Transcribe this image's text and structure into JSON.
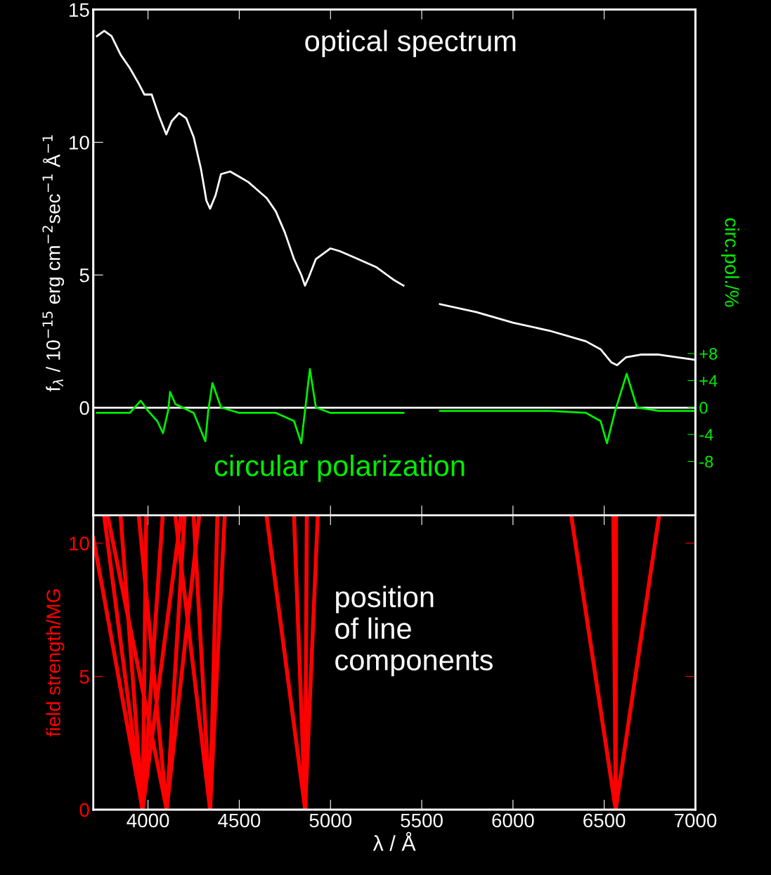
{
  "chart_data": [
    {
      "type": "line",
      "ylabel": "f$_{λ}$ / 10$^{−15}$ erg cm$^{−2}$sec$^{−1}$ Å$^{−1}$",
      "y2label": "circ.pol./%",
      "xlim": [
        3700,
        7000
      ],
      "ylim": [
        -4.06,
        15
      ],
      "yticks": [
        0,
        5,
        10,
        15
      ],
      "y2lim": [
        -16,
        59
      ],
      "y2ticks": [
        {
          "value": 8,
          "label": "+8"
        },
        {
          "value": 4,
          "label": "+4"
        },
        0,
        {
          "value": -4,
          "label": "-4"
        },
        {
          "value": -8,
          "label": "-8"
        }
      ],
      "tick_labels": "y",
      "grid": false,
      "legend": false,
      "ref_lines": [
        {
          "axis": "y",
          "value": 0,
          "color": "#ffffff"
        }
      ],
      "annotations": [
        "optical spectrum",
        "circular polarization"
      ],
      "series": [
        {
          "color": "#ffffff",
          "x": [
            3720,
            3760,
            3800,
            3850,
            3900,
            3950,
            3980,
            4020,
            4060,
            4100,
            4130,
            4170,
            4210,
            4250,
            4290,
            4320,
            4340,
            4370,
            4400,
            4450,
            4500,
            4550,
            4600,
            4650,
            4700,
            4750,
            4800,
            4840,
            4860,
            4880,
            4920,
            5000,
            5050,
            5150,
            5250,
            5350,
            5400,
            5410,
            5600,
            5800,
            6000,
            6200,
            6400,
            6480,
            6540,
            6570,
            6620,
            6700,
            6800,
            6900,
            7000
          ],
          "values": [
            14.0,
            14.2,
            14.0,
            13.3,
            12.8,
            12.2,
            11.8,
            11.8,
            11.0,
            10.3,
            10.8,
            11.1,
            10.9,
            10.2,
            9.0,
            7.8,
            7.5,
            8.0,
            8.8,
            8.9,
            8.7,
            8.5,
            8.2,
            7.9,
            7.4,
            6.6,
            5.6,
            5.0,
            4.6,
            4.9,
            5.6,
            6.0,
            5.9,
            5.6,
            5.3,
            4.8,
            4.6,
            null,
            3.9,
            3.6,
            3.2,
            2.9,
            2.5,
            2.2,
            1.7,
            1.6,
            1.9,
            2.0,
            2.0,
            1.9,
            1.8
          ]
        },
        {
          "color": "#00ee00",
          "axis": "y2",
          "x": [
            3720,
            3900,
            3960,
            4000,
            4050,
            4082,
            4110,
            4121,
            4150,
            4250,
            4314,
            4330,
            4353,
            4400,
            4500,
            4700,
            4800,
            4840,
            4860,
            4887,
            4920,
            5000,
            5200,
            5400,
            5410,
            5600,
            5800,
            6000,
            6200,
            6400,
            6480,
            6515,
            6560,
            6623,
            6680,
            6800,
            7000
          ],
          "values": [
            -0.8,
            -0.8,
            1.0,
            -0.5,
            -2.0,
            -3.8,
            -0.5,
            2.3,
            0.5,
            -0.8,
            -5.0,
            -0.5,
            3.6,
            0.0,
            -0.8,
            -0.8,
            -2.0,
            -5.3,
            -0.5,
            5.7,
            0.0,
            -0.8,
            -0.8,
            -0.8,
            null,
            -0.5,
            -0.5,
            -0.5,
            -0.5,
            -0.8,
            -2.0,
            -5.3,
            -0.5,
            5.0,
            0.0,
            -0.5,
            -0.5
          ]
        }
      ]
    },
    {
      "type": "line",
      "xlabel": "λ / Å",
      "ylabel": "field strength/MG",
      "xlim": [
        3700,
        7000
      ],
      "xticks": [
        4000,
        4500,
        5000,
        5500,
        6000,
        6500,
        7000
      ],
      "ylim": [
        0,
        11.05
      ],
      "yticks": [
        0,
        5,
        10
      ],
      "grid": false,
      "legend": false,
      "annotations": [
        "position\nof line\ncomponents"
      ],
      "series": [
        {
          "color": "#ff0000",
          "x": [
            3700,
            3970,
            4180
          ],
          "values": [
            10.2,
            0,
            11
          ]
        },
        {
          "color": "#ff0000",
          "x": [
            3760,
            3970,
            4080
          ],
          "values": [
            11,
            0,
            11
          ]
        },
        {
          "color": "#ff0000",
          "x": [
            3850,
            3970,
            3990
          ],
          "values": [
            11,
            0,
            11
          ]
        },
        {
          "color": "#ff0000",
          "x": [
            3780,
            4102,
            4280
          ],
          "values": [
            11,
            0,
            11
          ]
        },
        {
          "color": "#ff0000",
          "x": [
            3950,
            4102,
            4200
          ],
          "values": [
            11,
            0,
            11
          ]
        },
        {
          "color": "#ff0000",
          "x": [
            4150,
            4340,
            4420
          ],
          "values": [
            11,
            0,
            11
          ]
        },
        {
          "color": "#ff0000",
          "x": [
            4250,
            4340,
            4380
          ],
          "values": [
            11,
            0,
            11
          ]
        },
        {
          "color": "#ff0000",
          "x": [
            4650,
            4861,
            4930
          ],
          "values": [
            11,
            0,
            11
          ]
        },
        {
          "color": "#ff0000",
          "x": [
            4800,
            4861,
            4870
          ],
          "values": [
            11,
            0,
            11
          ]
        },
        {
          "color": "#ff0000",
          "x": [
            6320,
            6563,
            6800
          ],
          "values": [
            11,
            0,
            11
          ]
        },
        {
          "color": "#ff0000",
          "x": [
            6550,
            6563,
            6565
          ],
          "values": [
            11,
            0,
            11
          ]
        }
      ]
    }
  ]
}
